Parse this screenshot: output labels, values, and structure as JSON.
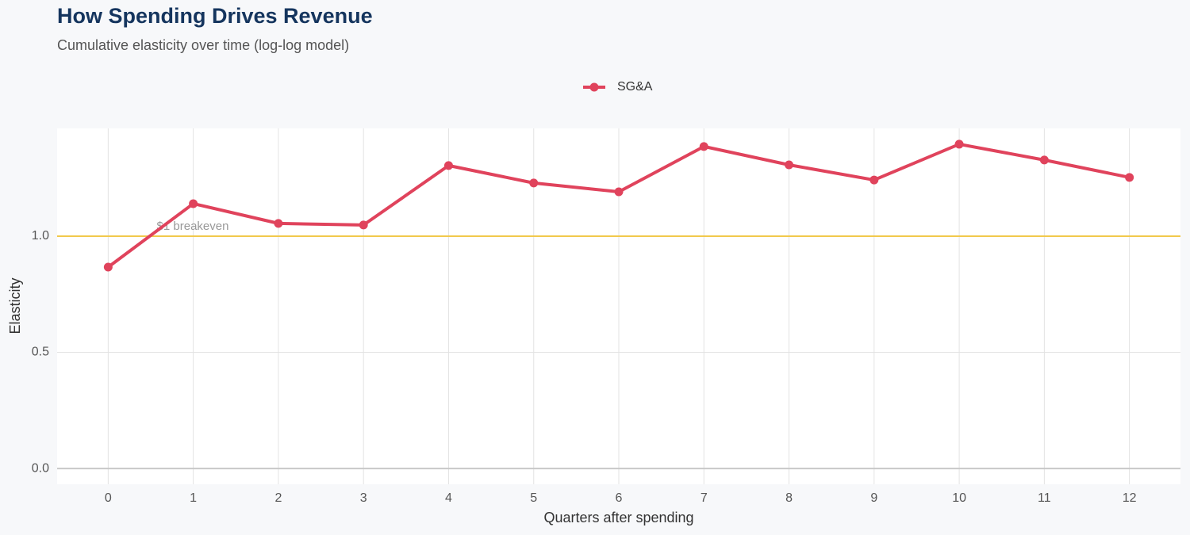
{
  "chart_data": {
    "type": "line",
    "title": "How Spending Drives Revenue",
    "subtitle": "Cumulative elasticity over time (log-log model)",
    "x_label": "Quarters after spending",
    "y_label": "Elasticity",
    "x": [
      0,
      1,
      2,
      3,
      4,
      5,
      6,
      7,
      8,
      9,
      10,
      11,
      12
    ],
    "series": [
      {
        "name": "SG&A",
        "color": "#e0435c",
        "values": [
          0.867,
          1.14,
          1.055,
          1.048,
          1.304,
          1.229,
          1.191,
          1.386,
          1.307,
          1.242,
          1.396,
          1.328,
          1.253
        ]
      }
    ],
    "xlim": [
      -0.6,
      12.6
    ],
    "xticks": [
      0,
      1,
      2,
      3,
      4,
      5,
      6,
      7,
      8,
      9,
      10,
      11,
      12
    ],
    "ylim": [
      -0.068,
      1.464
    ],
    "yticks": [
      {
        "value": 0,
        "label": "0.0"
      },
      {
        "value": 0.5,
        "label": "0.5"
      },
      {
        "value": 1,
        "label": "1.0"
      }
    ],
    "reference_line": {
      "value": 1,
      "label": "$1 breakeven",
      "color": "#f2c94c"
    },
    "grid": true,
    "legend": "top"
  }
}
